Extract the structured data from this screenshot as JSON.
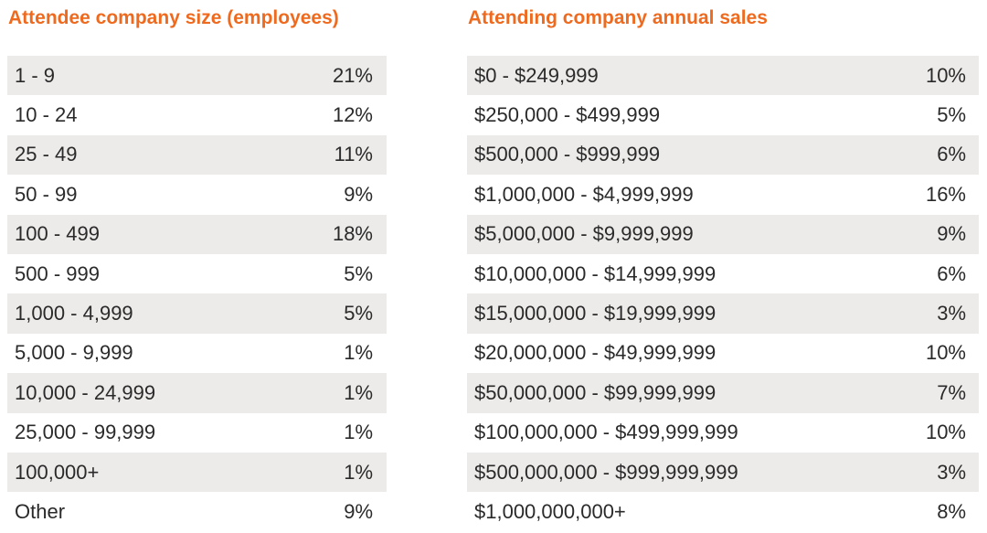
{
  "employees": {
    "title": "Attendee company size (employees)",
    "rows": [
      {
        "label": "1 - 9",
        "value": "21%"
      },
      {
        "label": "10 - 24",
        "value": "12%"
      },
      {
        "label": "25 - 49",
        "value": "11%"
      },
      {
        "label": "50 - 99",
        "value": "9%"
      },
      {
        "label": "100 - 499",
        "value": "18%"
      },
      {
        "label": "500 - 999",
        "value": "5%"
      },
      {
        "label": "1,000 - 4,999",
        "value": "5%"
      },
      {
        "label": "5,000 - 9,999",
        "value": "1%"
      },
      {
        "label": "10,000 - 24,999",
        "value": "1%"
      },
      {
        "label": "25,000 - 99,999",
        "value": "1%"
      },
      {
        "label": "100,000+",
        "value": "1%"
      },
      {
        "label": "Other",
        "value": "9%"
      }
    ]
  },
  "sales": {
    "title": "Attending company annual sales",
    "rows": [
      {
        "label": "$0 - $249,999",
        "value": "10%"
      },
      {
        "label": "$250,000 - $499,999",
        "value": "5%"
      },
      {
        "label": "$500,000 - $999,999",
        "value": "6%"
      },
      {
        "label": "$1,000,000 - $4,999,999",
        "value": "16%"
      },
      {
        "label": "$5,000,000 - $9,999,999",
        "value": "9%"
      },
      {
        "label": "$10,000,000 - $14,999,999",
        "value": "6%"
      },
      {
        "label": "$15,000,000 - $19,999,999",
        "value": "3%"
      },
      {
        "label": "$20,000,000 - $49,999,999",
        "value": "10%"
      },
      {
        "label": "$50,000,000 - $99,999,999",
        "value": "7%"
      },
      {
        "label": "$100,000,000 - $499,999,999",
        "value": "10%"
      },
      {
        "label": "$500,000,000 - $999,999,999",
        "value": "3%"
      },
      {
        "label": "$1,000,000,000+",
        "value": "8%"
      }
    ]
  },
  "colors": {
    "title_orange": "#ee6a1f",
    "row_shaded": "#edebea",
    "row_plain": "#ffffff",
    "text": "#2a2a2a"
  }
}
